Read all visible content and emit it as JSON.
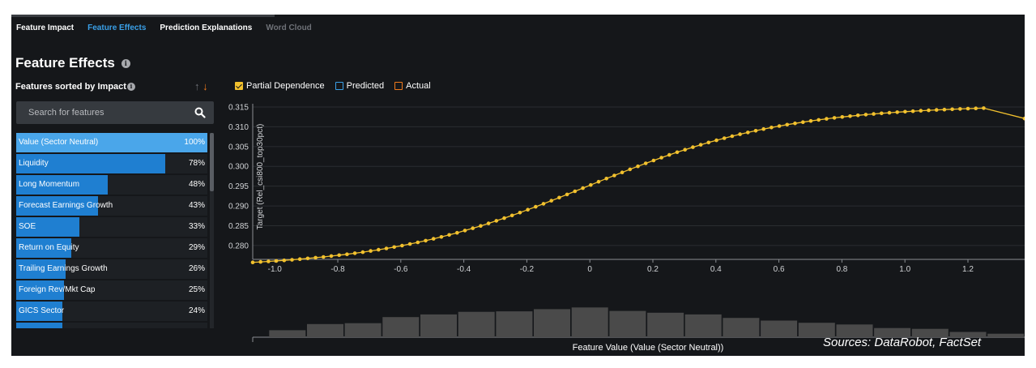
{
  "tabs": [
    {
      "label": "Feature Impact",
      "state": "normal"
    },
    {
      "label": "Feature Effects",
      "state": "active"
    },
    {
      "label": "Prediction Explanations",
      "state": "normal"
    },
    {
      "label": "Word Cloud",
      "state": "disabled"
    }
  ],
  "page_title": "Feature Effects",
  "sidebar": {
    "sorted_label": "Features sorted by Impact",
    "sort_up": "↑",
    "sort_down": "↓",
    "search_placeholder": "Search for features",
    "features": [
      {
        "name": "Value (Sector Neutral)",
        "pct_label": "100%",
        "impact": 1.0,
        "selected": true
      },
      {
        "name": "Liquidity",
        "pct_label": "78%",
        "impact": 0.78
      },
      {
        "name": "Long Momentum",
        "pct_label": "48%",
        "impact": 0.48
      },
      {
        "name": "Forecast Earnings Growth",
        "pct_label": "43%",
        "impact": 0.43
      },
      {
        "name": "SOE",
        "pct_label": "33%",
        "impact": 0.33
      },
      {
        "name": "Return on Equity",
        "pct_label": "29%",
        "impact": 0.29
      },
      {
        "name": "Trailing Earnings Growth",
        "pct_label": "26%",
        "impact": 0.26
      },
      {
        "name": "Foreign Rev/Mkt Cap",
        "pct_label": "25%",
        "impact": 0.25
      },
      {
        "name": "GICS Sector",
        "pct_label": "24%",
        "impact": 0.24
      },
      {
        "name": "",
        "pct_label": "",
        "impact": 0.24
      }
    ]
  },
  "legend": [
    {
      "label": "Partial Dependence",
      "checked": true,
      "color": "#f2c12e"
    },
    {
      "label": "Predicted",
      "checked": false,
      "color": "#3aa0e8"
    },
    {
      "label": "Actual",
      "checked": false,
      "color": "#f07a1c"
    }
  ],
  "colors": {
    "line": "#f2c12e",
    "histogram": "#4a4a4a",
    "accent": "#3aa0e8"
  },
  "chart_data": {
    "type": "line",
    "ylabel": "Target (Rel_csi800_top30pct)",
    "xlabel": "Feature Value (Value (Sector Neutral))",
    "xlim": [
      -1.07,
      1.38
    ],
    "ylim": [
      0.2765,
      0.315
    ],
    "x_ticks": [
      "-1.0",
      "-0.8",
      "-0.6",
      "-0.4",
      "-0.2",
      "0",
      "0.2",
      "0.4",
      "0.6",
      "0.8",
      "1.0",
      "1.2"
    ],
    "y_ticks": [
      "0.280",
      "0.285",
      "0.290",
      "0.295",
      "0.300",
      "0.305",
      "0.310",
      "0.315"
    ],
    "grid": "horizontal",
    "series": [
      {
        "name": "Partial Dependence",
        "curve": {
          "type": "logistic",
          "low": 0.2743,
          "high": 0.3155,
          "center": -0.01,
          "scale": 0.32
        },
        "x_start": -1.07,
        "x_end": 1.25,
        "points": 94,
        "last_point": [
          1.38,
          0.3121
        ]
      }
    ],
    "histogram": {
      "bins": [
        {
          "x": -0.96,
          "height": 0.16
        },
        {
          "x": -0.84,
          "height": 0.3
        },
        {
          "x": -0.72,
          "height": 0.32
        },
        {
          "x": -0.6,
          "height": 0.46
        },
        {
          "x": -0.48,
          "height": 0.52
        },
        {
          "x": -0.36,
          "height": 0.58
        },
        {
          "x": -0.24,
          "height": 0.59
        },
        {
          "x": -0.12,
          "height": 0.64
        },
        {
          "x": 0.0,
          "height": 0.68
        },
        {
          "x": 0.12,
          "height": 0.6
        },
        {
          "x": 0.24,
          "height": 0.56
        },
        {
          "x": 0.36,
          "height": 0.52
        },
        {
          "x": 0.48,
          "height": 0.44
        },
        {
          "x": 0.6,
          "height": 0.38
        },
        {
          "x": 0.72,
          "height": 0.33
        },
        {
          "x": 0.84,
          "height": 0.29
        },
        {
          "x": 0.96,
          "height": 0.21
        },
        {
          "x": 1.08,
          "height": 0.19
        },
        {
          "x": 1.2,
          "height": 0.12
        },
        {
          "x": 1.32,
          "height": 0.08
        }
      ]
    }
  },
  "sources": "Sources: DataRobot, FactSet"
}
